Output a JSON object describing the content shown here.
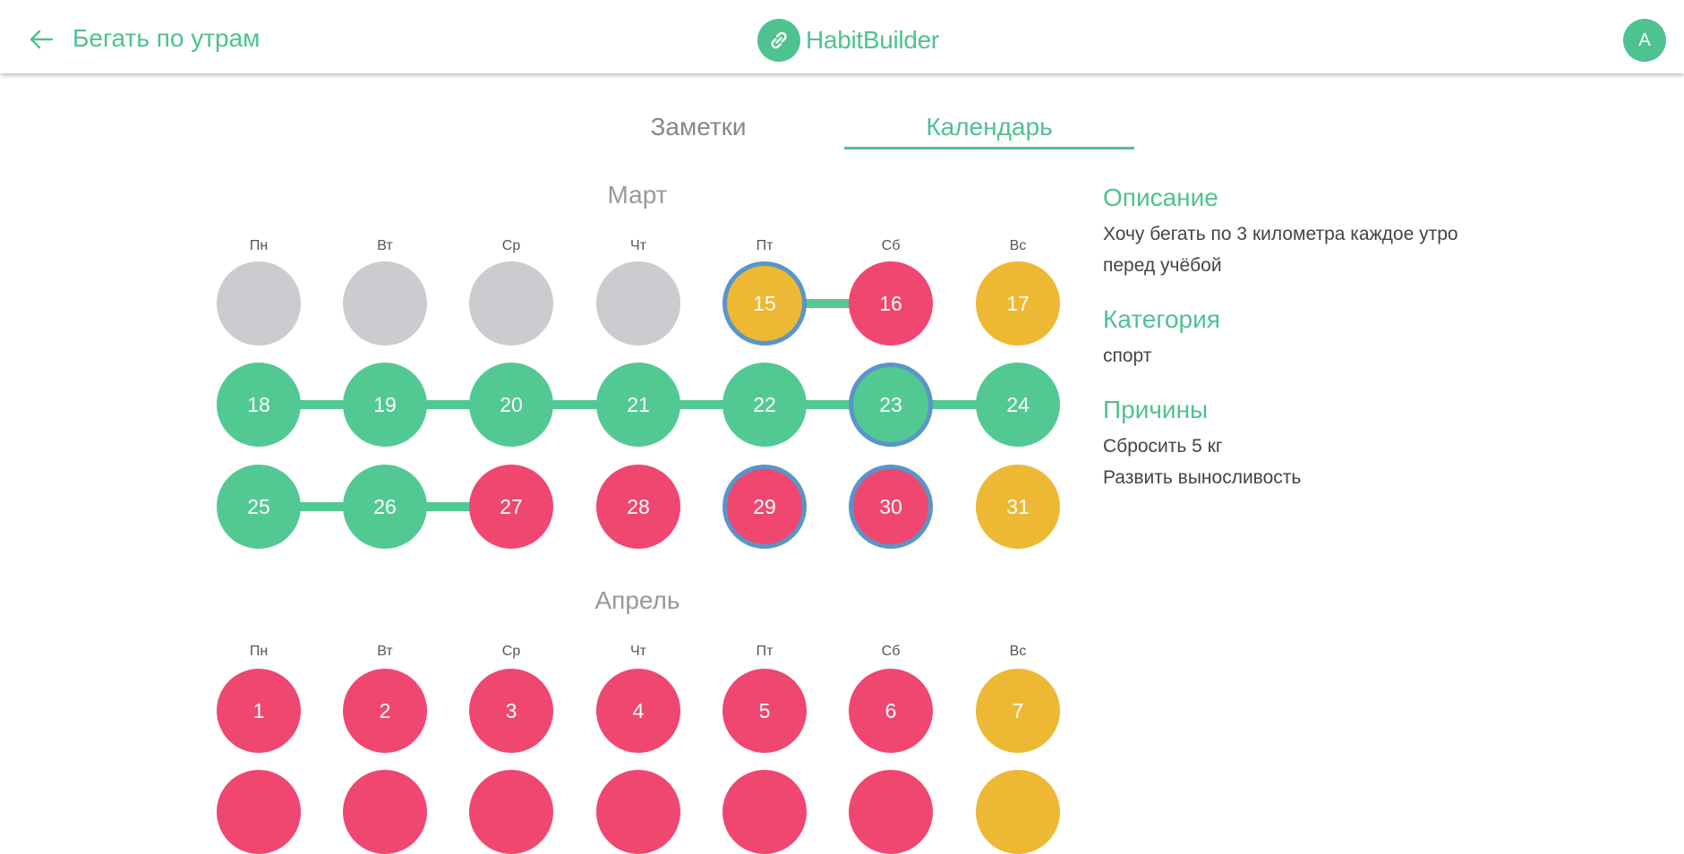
{
  "header": {
    "back_icon": "arrow-left-icon",
    "habit_title": "Бегать по утрам",
    "logo_icon": "link-icon",
    "logo_text": "HabitBuilder",
    "avatar_letter": "A"
  },
  "tabs": [
    {
      "label": "Заметки",
      "active": false
    },
    {
      "label": "Календарь",
      "active": true
    }
  ],
  "colors": {
    "accent": "#4ec28f",
    "done": "#52c993",
    "missed": "#ef4770",
    "partial": "#edb833",
    "inactive": "#cccbd0",
    "today_ring": "#5a95c7"
  },
  "weekdays": [
    "Пн",
    "Вт",
    "Ср",
    "Чт",
    "Пт",
    "Сб",
    "Вс"
  ],
  "months": [
    {
      "name": "Март",
      "weeks": [
        [
          {
            "label": "",
            "status": "inactive"
          },
          {
            "label": "",
            "status": "inactive"
          },
          {
            "label": "",
            "status": "inactive"
          },
          {
            "label": "",
            "status": "inactive"
          },
          {
            "label": "15",
            "status": "partial",
            "ring": true
          },
          {
            "label": "16",
            "status": "missed"
          },
          {
            "label": "17",
            "status": "partial"
          }
        ],
        [
          {
            "label": "18",
            "status": "done"
          },
          {
            "label": "19",
            "status": "done"
          },
          {
            "label": "20",
            "status": "done"
          },
          {
            "label": "21",
            "status": "done"
          },
          {
            "label": "22",
            "status": "done"
          },
          {
            "label": "23",
            "status": "done",
            "ring": true
          },
          {
            "label": "24",
            "status": "done"
          }
        ],
        [
          {
            "label": "25",
            "status": "done"
          },
          {
            "label": "26",
            "status": "done"
          },
          {
            "label": "27",
            "status": "missed"
          },
          {
            "label": "28",
            "status": "missed"
          },
          {
            "label": "29",
            "status": "missed",
            "ring": true
          },
          {
            "label": "30",
            "status": "missed",
            "ring": true
          },
          {
            "label": "31",
            "status": "partial"
          }
        ]
      ],
      "links": [
        [
          0,
          4,
          5
        ],
        [
          1,
          0,
          6
        ],
        [
          2,
          0,
          2
        ]
      ]
    },
    {
      "name": "Апрель",
      "weeks": [
        [
          {
            "label": "1",
            "status": "missed"
          },
          {
            "label": "2",
            "status": "missed"
          },
          {
            "label": "3",
            "status": "missed"
          },
          {
            "label": "4",
            "status": "missed"
          },
          {
            "label": "5",
            "status": "missed"
          },
          {
            "label": "6",
            "status": "missed"
          },
          {
            "label": "7",
            "status": "partial"
          }
        ],
        [
          {
            "label": "",
            "status": "missed"
          },
          {
            "label": "",
            "status": "missed"
          },
          {
            "label": "",
            "status": "missed"
          },
          {
            "label": "",
            "status": "missed"
          },
          {
            "label": "",
            "status": "missed"
          },
          {
            "label": "",
            "status": "missed"
          },
          {
            "label": "",
            "status": "partial"
          }
        ]
      ],
      "links": []
    }
  ],
  "info": {
    "description_heading": "Описание",
    "description_line1": "Хочу бегать по 3 километра каждое утро",
    "description_line2": "перед учёбой",
    "category_heading": "Категория",
    "category_value": "спорт",
    "reasons_heading": "Причины",
    "reasons": [
      "Сбросить 5 кг",
      "Развить выносливость"
    ]
  }
}
